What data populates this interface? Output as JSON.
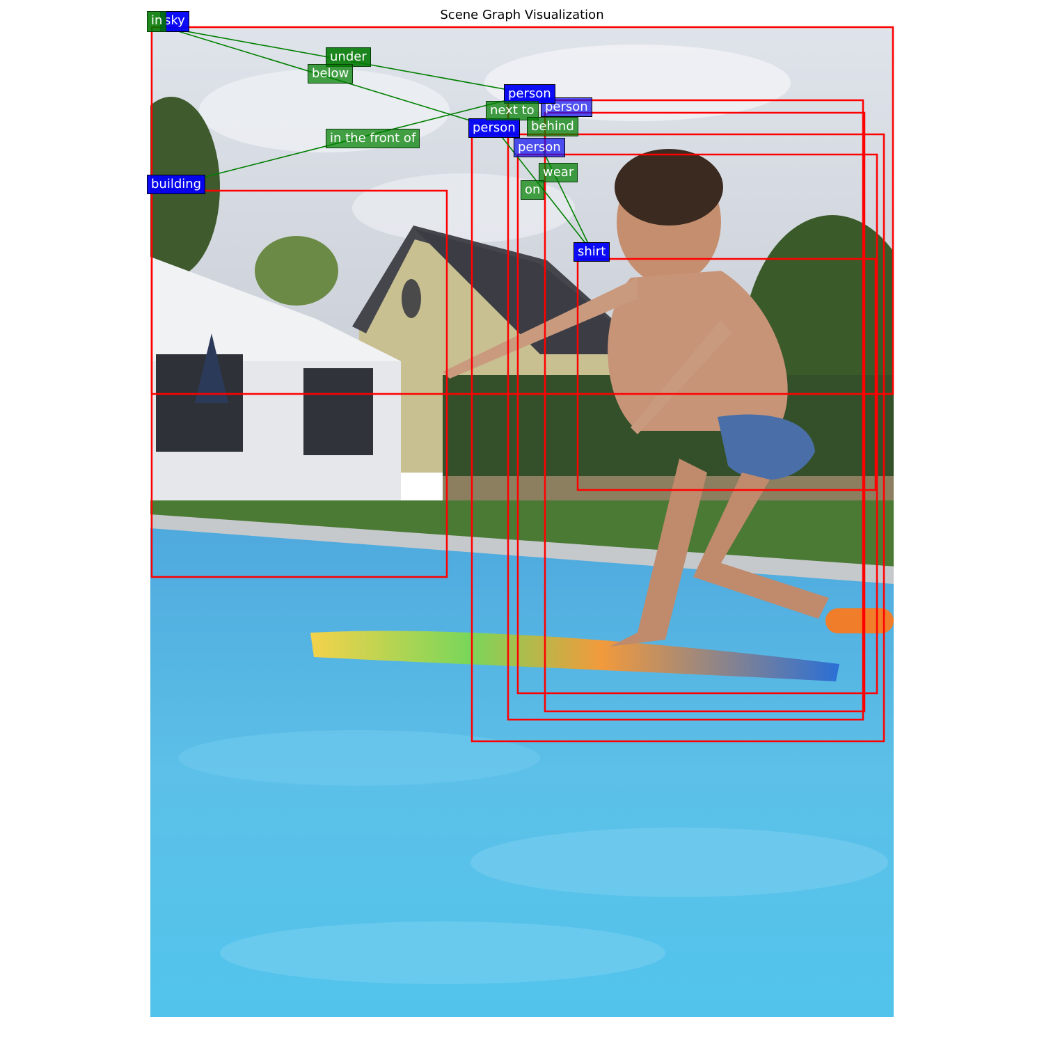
{
  "title": "Scene Graph Visualization",
  "objects": [
    {
      "id": "sky",
      "label": "sky"
    },
    {
      "id": "building",
      "label": "building"
    },
    {
      "id": "person1",
      "label": "person"
    },
    {
      "id": "person2",
      "label": "person"
    },
    {
      "id": "person3",
      "label": "person"
    },
    {
      "id": "person4",
      "label": "person"
    },
    {
      "id": "shirt",
      "label": "shirt"
    }
  ],
  "relations": [
    {
      "label": "in"
    },
    {
      "label": "under"
    },
    {
      "label": "below"
    },
    {
      "label": "in the front of"
    },
    {
      "label": "next to"
    },
    {
      "label": "behind"
    },
    {
      "label": "wear"
    },
    {
      "label": "on"
    }
  ],
  "colors": {
    "box": "#ff0000",
    "object_label": "#0000f5",
    "relation_label": "#008000",
    "edge": "#008000"
  }
}
